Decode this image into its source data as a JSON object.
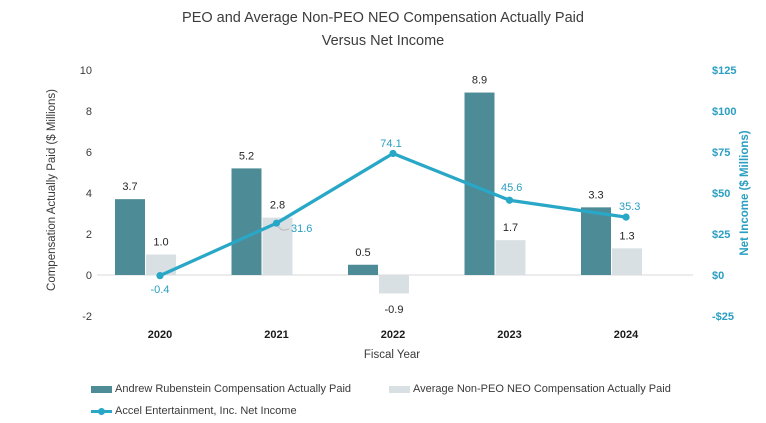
{
  "title": {
    "line1": "PEO and Average Non-PEO NEO Compensation Actually Paid",
    "line2": "Versus Net Income"
  },
  "chart_data": {
    "type": "bar+line combo",
    "categories": [
      "2020",
      "2021",
      "2022",
      "2023",
      "2024"
    ],
    "series": [
      {
        "name": "Andrew Rubenstein Compensation Actually Paid",
        "type": "bar",
        "axis": "left",
        "color": "#4d8c96",
        "values": [
          3.7,
          5.2,
          0.5,
          8.9,
          3.3
        ],
        "labels": [
          "3.7",
          "5.2",
          "0.5",
          "8.9",
          "3.3"
        ]
      },
      {
        "name": "Average Non-PEO NEO Compensation Actually Paid",
        "type": "bar",
        "axis": "left",
        "color": "#d9e0e3",
        "values": [
          1.0,
          2.8,
          -0.9,
          1.7,
          1.3
        ],
        "labels": [
          "1.0",
          "2.8",
          "-0.9",
          "1.7",
          "1.3"
        ]
      },
      {
        "name": "Accel Entertainment, Inc. Net Income",
        "type": "line",
        "axis": "right",
        "color": "#29a7c7",
        "values": [
          -0.4,
          31.6,
          74.1,
          45.6,
          35.3
        ],
        "labels": [
          "-0.4",
          "31.6",
          "74.1",
          "45.6",
          "35.3"
        ]
      }
    ],
    "left_axis": {
      "title": "Compensation Actually Paid ($ Millions)",
      "tick_values": [
        10,
        8,
        6,
        4,
        2,
        0,
        -2
      ],
      "tick_labels": [
        "10",
        "8",
        "6",
        "4",
        "2",
        "0",
        "-2"
      ],
      "range": [
        -2,
        10
      ]
    },
    "right_axis": {
      "title": "Net Income ($ Millions)",
      "tick_values": [
        125,
        100,
        75,
        50,
        25,
        0,
        -25
      ],
      "tick_labels": [
        "$125",
        "$100",
        "$75",
        "$50",
        "$25",
        "$0",
        "-$25"
      ],
      "range": [
        -25,
        125
      ]
    },
    "x_axis": {
      "title": "Fiscal Year"
    },
    "grid": "zero-line only",
    "legend_position": "bottom-left"
  },
  "legend": {
    "items": [
      {
        "label": "Andrew Rubenstein Compensation Actually Paid",
        "swatch": "bar"
      },
      {
        "label": "Average Non-PEO NEO Compensation Actually Paid",
        "swatch": "bar"
      },
      {
        "label": "Accel Entertainment, Inc. Net Income",
        "swatch": "line-marker"
      }
    ]
  },
  "colors": {
    "peo_bar": "#4d8c96",
    "non_peo_bar": "#d9e0e3",
    "net_income_line": "#29a7c7",
    "teal_text": "#2a9ec1",
    "dark_text": "#3a3a3a",
    "value_label_text": "#262626",
    "gridline": "#d9d9d9",
    "leader_line": "#bfbfbf"
  }
}
